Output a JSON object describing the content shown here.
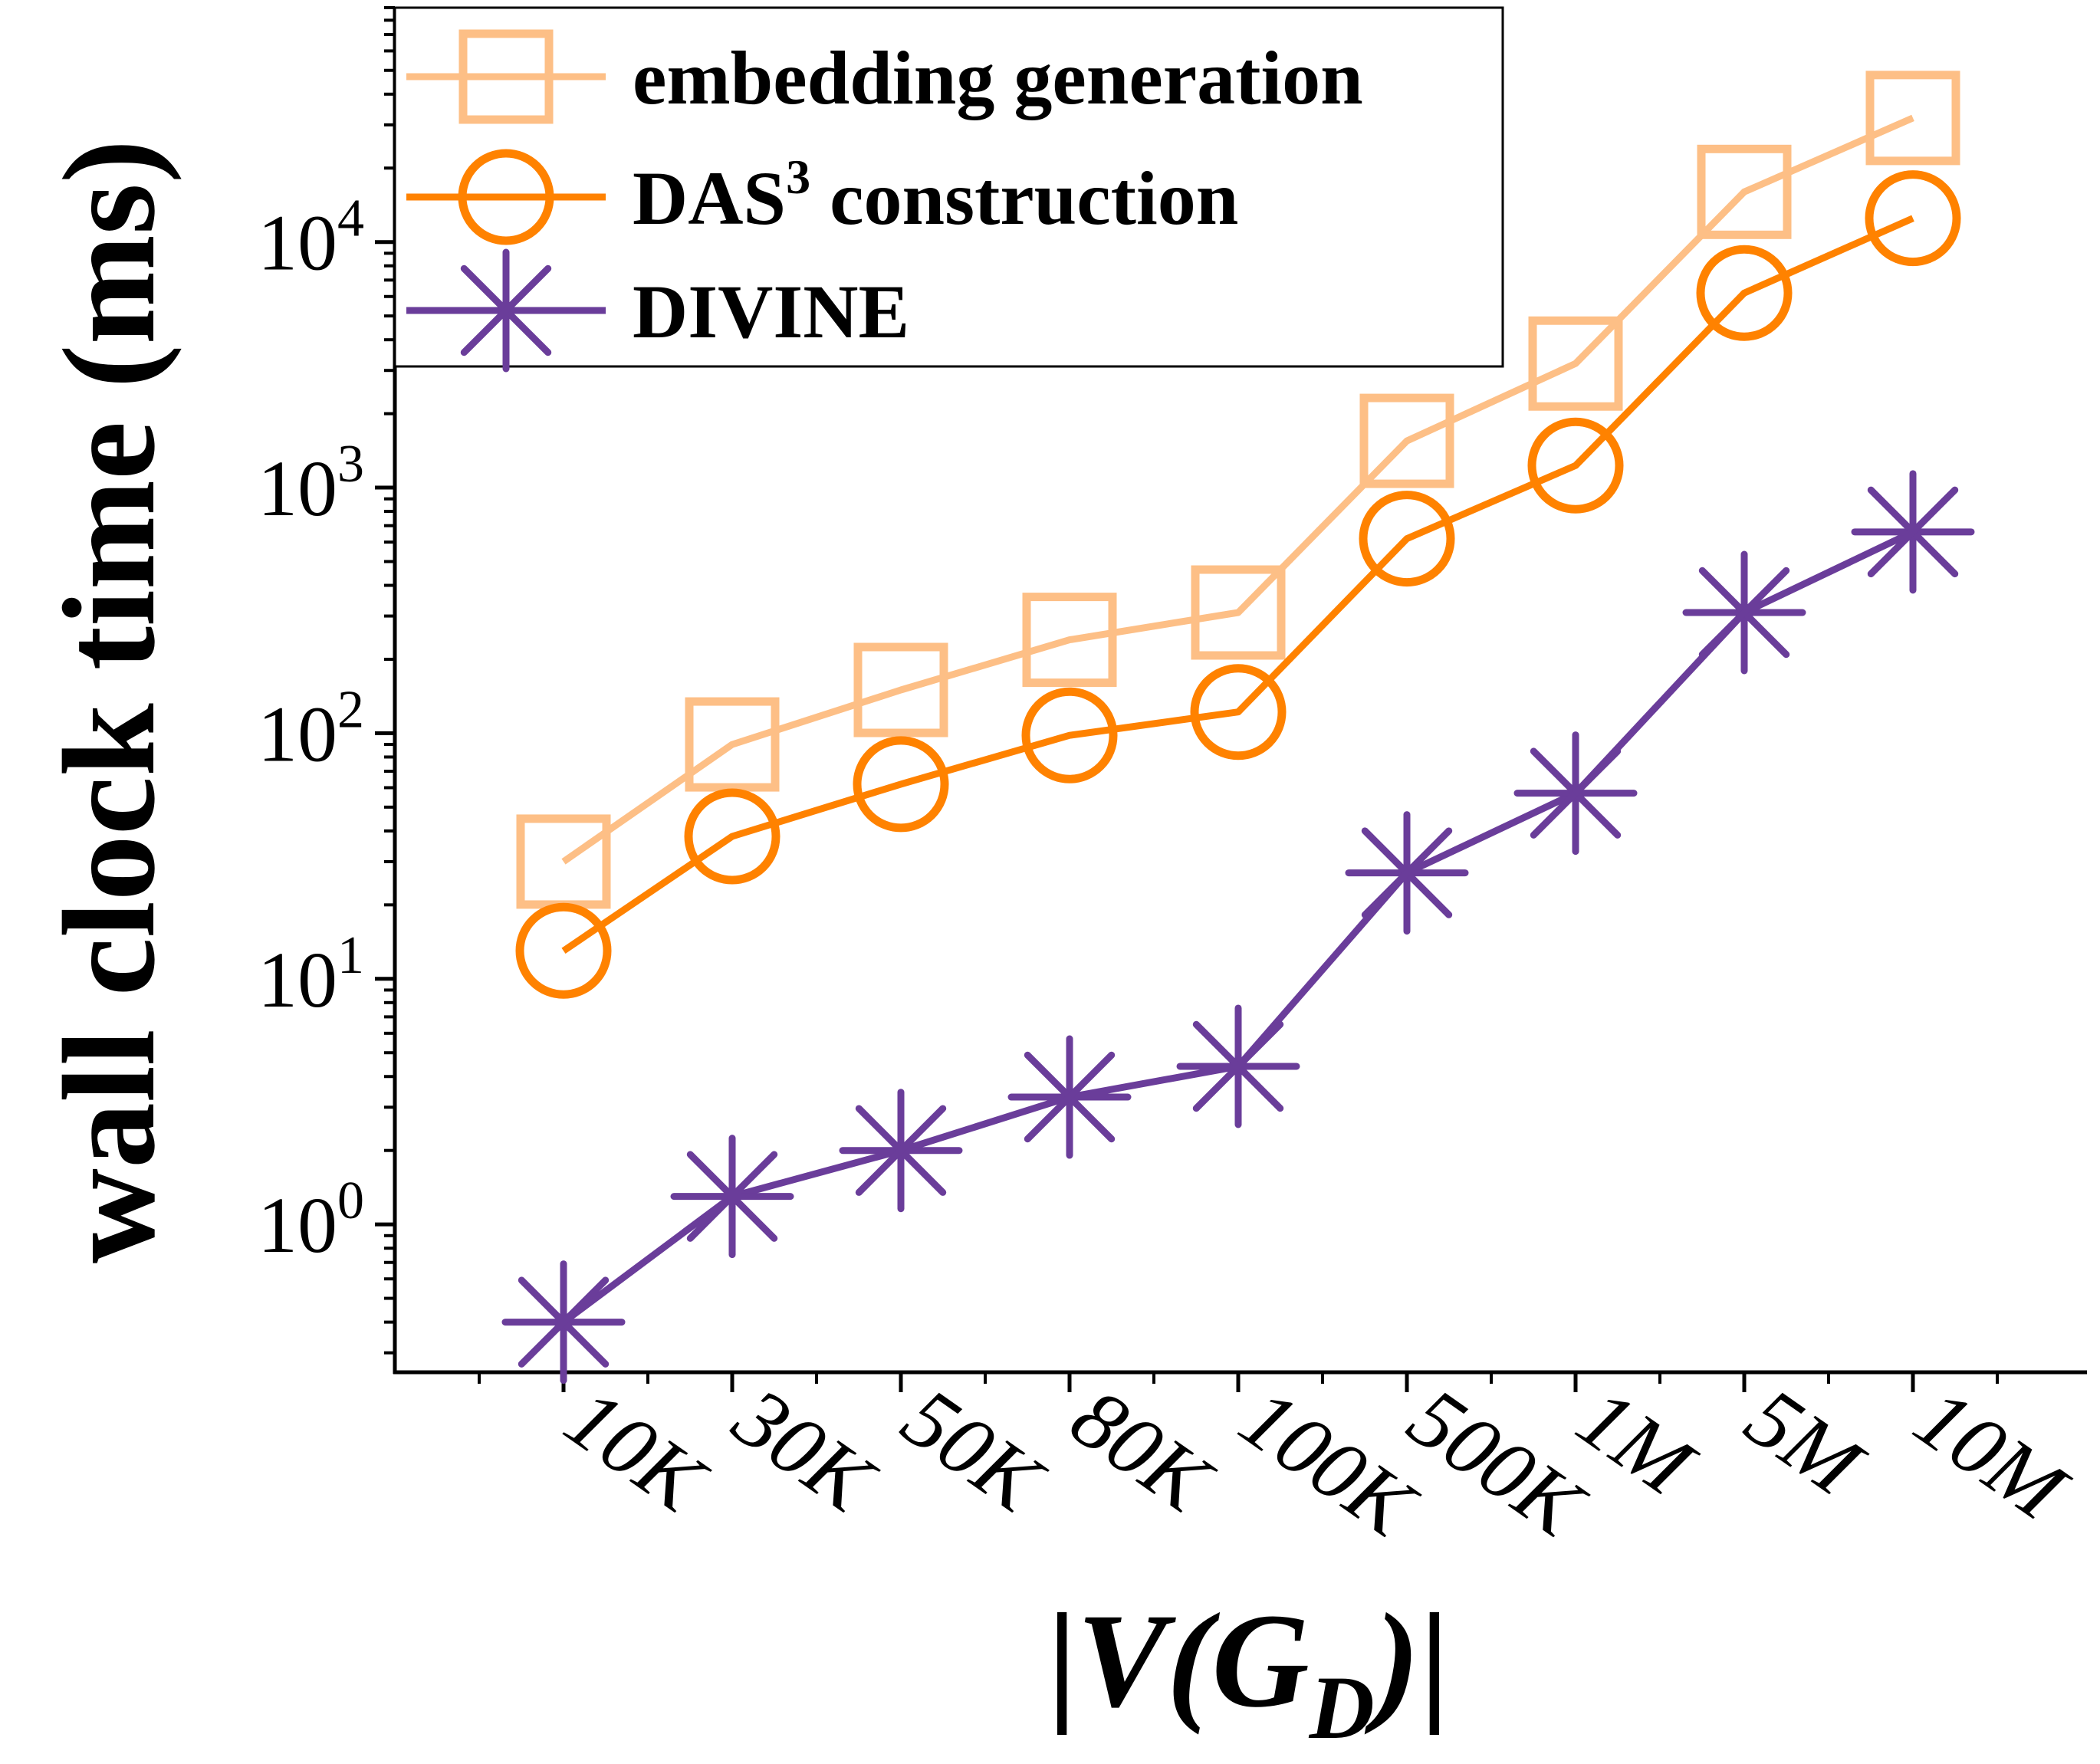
{
  "chart_data": {
    "type": "line",
    "xlabel": {
      "bar_left": "|",
      "v": "V",
      "open": "(",
      "g": "G",
      "sub": "D",
      "close": ")",
      "bar_right": "|"
    },
    "ylabel": "wall clock time (ms)",
    "y_scale": "log",
    "ylim": [
      0.25,
      90000
    ],
    "y_ticks": [
      {
        "base": "10",
        "exp": "0",
        "value": 1
      },
      {
        "base": "10",
        "exp": "1",
        "value": 10
      },
      {
        "base": "10",
        "exp": "2",
        "value": 100
      },
      {
        "base": "10",
        "exp": "3",
        "value": 1000
      },
      {
        "base": "10",
        "exp": "4",
        "value": 10000
      }
    ],
    "categories": [
      "10K",
      "30K",
      "50K",
      "80K",
      "100K",
      "500K",
      "1M",
      "5M",
      "10M"
    ],
    "series": [
      {
        "name": "embedding generation",
        "marker": "square",
        "color": "#FDBF86",
        "values": [
          30,
          90,
          150,
          240,
          310,
          1550,
          3200,
          16000,
          32000
        ]
      },
      {
        "name": "DAS",
        "name_sup": "3",
        "name_suffix": " construction",
        "marker": "circle",
        "color": "#FF8200",
        "values": [
          13,
          38,
          62,
          98,
          122,
          620,
          1230,
          6200,
          12500
        ]
      },
      {
        "name": "DIVINE",
        "marker": "asterisk",
        "color": "#6A3D9A",
        "values": [
          0.4,
          1.3,
          2.0,
          3.3,
          4.4,
          27,
          57,
          310,
          660
        ]
      }
    ],
    "grid": false,
    "legend_position": "top-left"
  }
}
